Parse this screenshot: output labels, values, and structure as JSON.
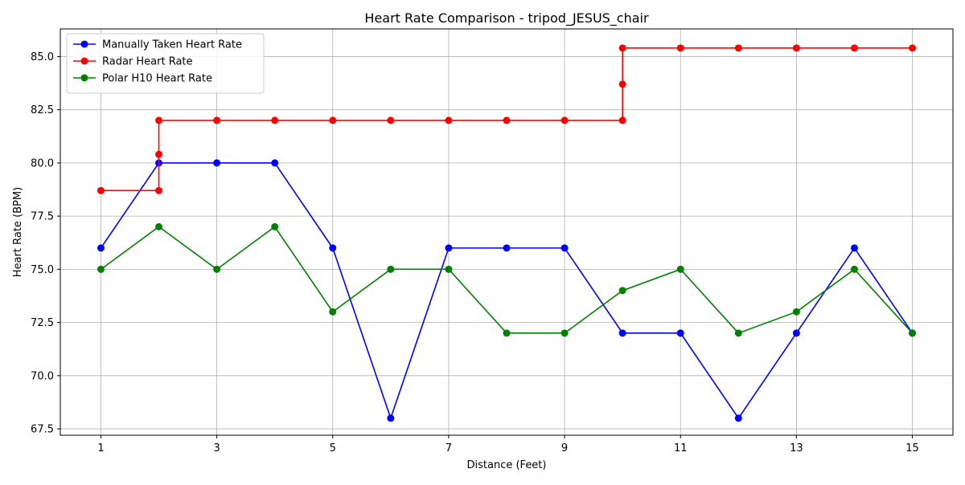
{
  "chart_data": {
    "type": "line",
    "title": "Heart Rate Comparison - tripod_JESUS_chair",
    "xlabel": "Distance (Feet)",
    "ylabel": "Heart Rate (BPM)",
    "xlim": [
      0.3,
      15.7
    ],
    "ylim": [
      67.2,
      86.3
    ],
    "xticks": [
      1,
      3,
      5,
      7,
      9,
      11,
      13,
      15
    ],
    "yticks": [
      67.5,
      70.0,
      72.5,
      75.0,
      77.5,
      80.0,
      82.5,
      85.0
    ],
    "ytick_labels": [
      "67.5",
      "70.0",
      "72.5",
      "75.0",
      "77.5",
      "80.0",
      "82.5",
      "85.0"
    ],
    "grid": true,
    "legend_position": "top-left",
    "series": [
      {
        "name": "Manually Taken Heart Rate",
        "color": "#0000ff",
        "x": [
          1,
          2,
          3,
          4,
          5,
          6,
          7,
          8,
          9,
          10,
          11,
          12,
          13,
          14,
          15
        ],
        "y": [
          76,
          80,
          80,
          80,
          76,
          68,
          76,
          76,
          76,
          72,
          72,
          68,
          72,
          76,
          72
        ]
      },
      {
        "name": "Radar Heart Rate",
        "color": "#ff0000",
        "x": [
          1,
          2,
          2,
          2,
          3,
          4,
          5,
          6,
          7,
          8,
          9,
          10,
          10,
          10,
          11,
          12,
          13,
          14,
          15
        ],
        "y": [
          78.7,
          78.7,
          80.4,
          82,
          82,
          82,
          82,
          82,
          82,
          82,
          82,
          82,
          83.7,
          85.4,
          85.4,
          85.4,
          85.4,
          85.4,
          85.4
        ]
      },
      {
        "name": "Polar H10 Heart Rate",
        "color": "#008000",
        "x": [
          1,
          2,
          3,
          4,
          5,
          6,
          7,
          8,
          9,
          10,
          11,
          12,
          13,
          14,
          15
        ],
        "y": [
          75,
          77,
          75,
          77,
          73,
          75,
          75,
          72,
          72,
          74,
          75,
          72,
          73,
          75,
          72
        ]
      }
    ]
  }
}
